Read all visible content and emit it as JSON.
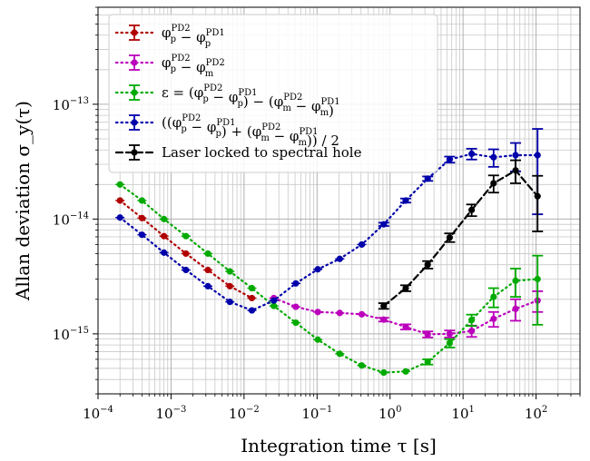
{
  "chart_data": {
    "type": "line",
    "xscale": "log",
    "yscale": "log",
    "xlim": [
      0.0001,
      400
    ],
    "ylim": [
      3e-16,
      7e-13
    ],
    "xlabel": "Integration time τ [s]",
    "ylabel": "Allan deviation σ_y(τ)",
    "grid": true,
    "legend_position": "upper-left",
    "x_ticks": [
      {
        "value": 0.0001,
        "base": "10",
        "exp": "−4"
      },
      {
        "value": 0.001,
        "base": "10",
        "exp": "−3"
      },
      {
        "value": 0.01,
        "base": "10",
        "exp": "−2"
      },
      {
        "value": 0.1,
        "base": "10",
        "exp": "−1"
      },
      {
        "value": 1,
        "base": "10",
        "exp": "0"
      },
      {
        "value": 10,
        "base": "10",
        "exp": "1"
      },
      {
        "value": 100,
        "base": "10",
        "exp": "2"
      }
    ],
    "y_ticks": [
      {
        "value": 1e-15,
        "base": "10",
        "exp": "−15"
      },
      {
        "value": 1e-14,
        "base": "10",
        "exp": "−14"
      },
      {
        "value": 1e-13,
        "base": "10",
        "exp": "−13"
      }
    ],
    "series": [
      {
        "name": "φ_p^PD2 − φ_p^PD1",
        "color": "#b00000",
        "dash": "dot",
        "x": [
          0.0002,
          0.0004,
          0.0008,
          0.0016,
          0.0032,
          0.0064,
          0.0128
        ],
        "y": [
          1.45e-14,
          1.02e-14,
          7.1e-15,
          5e-15,
          3.6e-15,
          2.6e-15,
          2.05e-15
        ],
        "err": [
          0,
          0,
          0,
          0,
          0,
          0,
          0
        ]
      },
      {
        "name": "φ_p^PD2 − φ_m^PD2",
        "color": "#bb00bb",
        "dash": "dot",
        "x": [
          0.0256,
          0.0512,
          0.1024,
          0.2048,
          0.4096,
          0.8192,
          1.6384,
          3.2768,
          6.5536,
          13.1072,
          26.2144,
          52.4288,
          104.8576
        ],
        "y": [
          2.05e-15,
          1.72e-15,
          1.55e-15,
          1.52e-15,
          1.48e-15,
          1.33e-15,
          1.15e-15,
          9.9e-16,
          1e-15,
          1.06e-15,
          1.35e-15,
          1.65e-15,
          1.95e-15
        ],
        "err": [
          0,
          0,
          0,
          0,
          0,
          5e-17,
          6e-17,
          6e-17,
          7e-17,
          1.2e-16,
          2e-16,
          3.5e-16,
          4e-16
        ]
      },
      {
        "name": "ε = (φ_p^PD2 − φ_p^PD1) − (φ_m^PD2 − φ_m^PD1)",
        "color": "#00aa00",
        "dash": "dot",
        "x": [
          0.0002,
          0.0004,
          0.0008,
          0.0016,
          0.0032,
          0.0064,
          0.0128,
          0.0256,
          0.0512,
          0.1024,
          0.2048,
          0.4096,
          0.8192,
          1.6384,
          3.2768,
          6.5536,
          13.1072,
          26.2144,
          52.4288,
          104.8576
        ],
        "y": [
          2e-14,
          1.45e-14,
          1e-14,
          7.1e-15,
          5e-15,
          3.5e-15,
          2.5e-15,
          1.75e-15,
          1.25e-15,
          8.9e-16,
          6.7e-16,
          5.3e-16,
          4.6e-16,
          4.7e-16,
          5.7e-16,
          8.3e-16,
          1.32e-15,
          2.1e-15,
          2.9e-15,
          3e-15
        ],
        "err": [
          0,
          0,
          0,
          0,
          0,
          0,
          0,
          0,
          0,
          0,
          0,
          0,
          0,
          0,
          3e-17,
          7e-17,
          1.5e-16,
          4e-16,
          8e-16,
          1.8e-15
        ]
      },
      {
        "name": "((φ_p^PD2 − φ_p^PD1) + (φ_m^PD2 − φ_m^PD1)) / 2",
        "color": "#0000aa",
        "dash": "dot",
        "x": [
          0.0002,
          0.0004,
          0.0008,
          0.0016,
          0.0032,
          0.0064,
          0.0128,
          0.0256,
          0.0512,
          0.1024,
          0.2048,
          0.4096,
          0.8192,
          1.6384,
          3.2768,
          6.5536,
          13.1072,
          26.2144,
          52.4288,
          104.8576
        ],
        "y": [
          1.03e-14,
          7.3e-15,
          5.1e-15,
          3.6e-15,
          2.6e-15,
          1.9e-15,
          1.6e-15,
          1.95e-15,
          2.75e-15,
          3.65e-15,
          4.5e-15,
          6e-15,
          9e-15,
          1.45e-14,
          2.25e-14,
          3.3e-14,
          3.7e-14,
          3.45e-14,
          3.6e-14,
          3.6e-14
        ],
        "err": [
          0,
          0,
          0,
          0,
          0,
          0,
          0,
          0,
          0,
          0,
          0,
          0,
          3e-16,
          6e-16,
          1e-15,
          2e-15,
          4e-15,
          6e-15,
          1e-14,
          2.5e-14
        ]
      },
      {
        "name": "Laser locked to spectral hole",
        "color": "#000000",
        "dash": "dash",
        "x": [
          0.8192,
          1.6384,
          3.2768,
          6.5536,
          13.1072,
          26.2144,
          52.4288,
          104.8576
        ],
        "y": [
          1.75e-15,
          2.5e-15,
          4e-15,
          6.9e-15,
          1.2e-14,
          2.05e-14,
          2.65e-14,
          1.58e-14
        ],
        "err": [
          1e-16,
          1.5e-16,
          3e-16,
          6e-16,
          1.4e-15,
          3.5e-15,
          6e-15,
          8e-15
        ]
      }
    ]
  }
}
